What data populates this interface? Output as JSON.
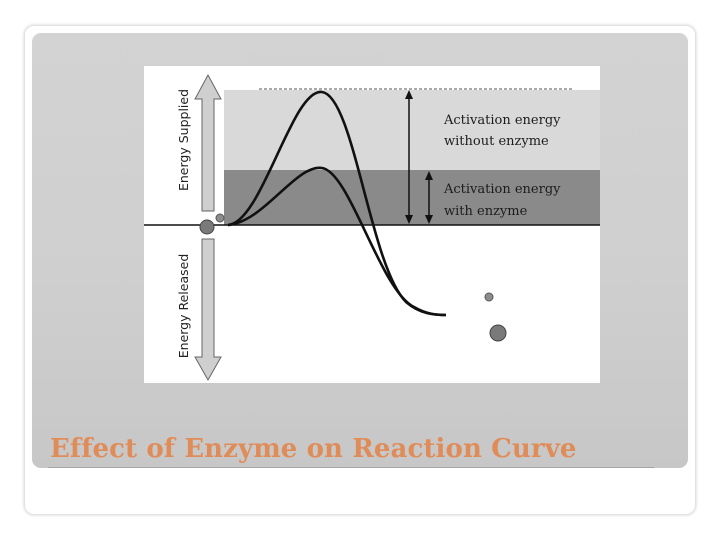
{
  "slide": {
    "title": "Effect of Enzyme on Reaction Curve"
  },
  "diagram": {
    "axis_up_label": "Energy Supplied",
    "axis_down_label": "Energy Released",
    "label_without_enzyme": {
      "line1": "Activation energy",
      "line2": "without enzyme"
    },
    "label_with_enzyme": {
      "line1": "Activation energy",
      "line2": "with enzyme"
    },
    "colors": {
      "band_without_enzyme": "#d9d9d9",
      "band_with_enzyme": "#8a8a8a",
      "curve": "#111111",
      "arrow_body": "#cfcfcf",
      "title": "#e08c58"
    }
  }
}
